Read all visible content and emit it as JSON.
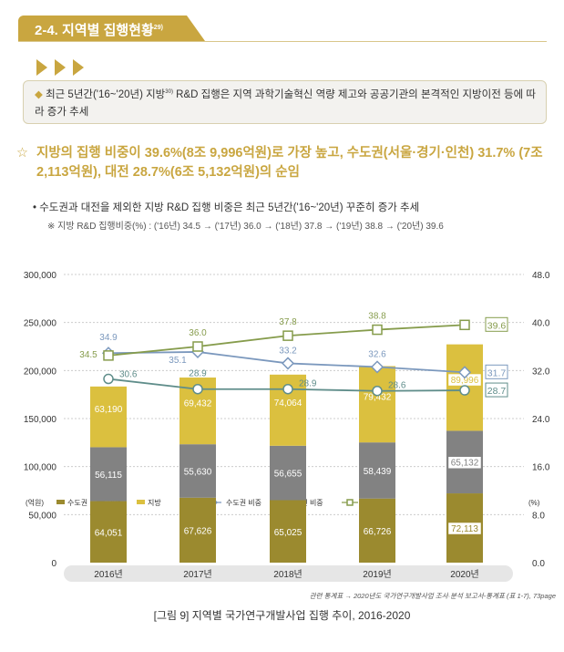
{
  "section": {
    "title": "2-4. 지역별 집행현황",
    "footnote": "29)"
  },
  "summary": {
    "bullet": "◆",
    "text_a": "최근 5년간('16~'20년) 지방",
    "footnote": "30)",
    "text_b": " R&D 집행은 지역 과학기술혁신 역량 제고와 공공기관의 본격적인 지방이전 등에 따라 증가 추세"
  },
  "headline": {
    "icon": "star-icon",
    "text": "지방의 집행 비중이 39.6%(8조 9,996억원)로 가장 높고, 수도권(서울·경기·인천) 31.7% (7조 2,113억원), 대전 28.7%(6조 5,132억원)의 순임"
  },
  "bullet": "• 수도권과 대전을 제외한 지방 R&D 집행 비중은 최근 5년간('16~'20년) 꾸준히 증가 추세",
  "note": "※ 지방 R&D 집행비중(%) : ('16년) 34.5 → ('17년) 36.0 → ('18년) 37.8 → ('19년) 38.8 → ('20년) 39.6",
  "chart_data": {
    "type": "bar+line",
    "categories": [
      "2016년",
      "2017년",
      "2018년",
      "2019년",
      "2020년"
    ],
    "left_unit": "(억원)",
    "right_unit": "(%)",
    "left_ylim": [
      0,
      300000
    ],
    "left_ticks": [
      "0",
      "50,000",
      "100,000",
      "150,000",
      "200,000",
      "250,000",
      "300,000"
    ],
    "right_ylim": [
      0,
      48
    ],
    "right_ticks": [
      "0.0",
      "8.0",
      "16.0",
      "24.0",
      "32.0",
      "40.0",
      "48.0"
    ],
    "grid": true,
    "legend": "top",
    "bars": [
      {
        "name": "수도권",
        "color": "#9b8a2f",
        "values": [
          64051,
          67626,
          65025,
          66726,
          72113
        ],
        "labels": [
          "64,051",
          "67,626",
          "65,025",
          "66,726",
          "72,113"
        ]
      },
      {
        "name": "대전",
        "color": "#828282",
        "values": [
          56115,
          55630,
          56655,
          58439,
          65132
        ],
        "labels": [
          "56,115",
          "55,630",
          "56,655",
          "58,439",
          "65,132"
        ]
      },
      {
        "name": "지방",
        "color": "#dbc03f",
        "values": [
          63190,
          69432,
          74064,
          79432,
          89996
        ],
        "labels": [
          "63,190",
          "69,432",
          "74,064",
          "79,432",
          "89,996"
        ]
      }
    ],
    "lines": [
      {
        "name": "수도권 비중",
        "color": "#7b98bd",
        "marker": "diamond",
        "values": [
          34.9,
          35.1,
          33.2,
          32.6,
          31.7
        ],
        "labels": [
          "34.9",
          "35.1",
          "33.2",
          "32.6",
          "31.7"
        ]
      },
      {
        "name": "대전 비중",
        "color": "#5f8d8a",
        "marker": "circle",
        "values": [
          30.6,
          28.9,
          28.9,
          28.6,
          28.7
        ],
        "labels": [
          "30.6",
          "28.9",
          "28.9",
          "28.6",
          "28.7"
        ]
      },
      {
        "name": "지방 비중",
        "color": "#869c4c",
        "marker": "square",
        "values": [
          34.5,
          36.0,
          37.8,
          38.8,
          39.6
        ],
        "labels": [
          "34.5",
          "36.0",
          "37.8",
          "38.8",
          "39.6"
        ]
      }
    ]
  },
  "source": "관련 통계표 → 2020년도 국가연구개발사업 조사·분석 보고서-통계표 (표 1-7), 73page",
  "caption": "[그림 9] 지역별 국가연구개발사업 집행 추이, 2016-2020"
}
